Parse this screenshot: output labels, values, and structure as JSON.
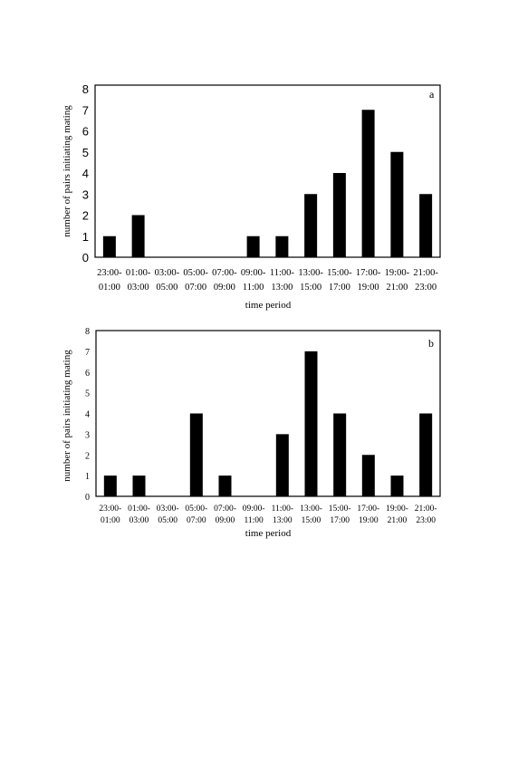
{
  "chart_data": [
    {
      "type": "bar",
      "panel_label": "a",
      "categories": [
        [
          "23:00-",
          "01:00"
        ],
        [
          "01:00-",
          "03:00"
        ],
        [
          "03:00-",
          "05:00"
        ],
        [
          "05:00-",
          "07:00"
        ],
        [
          "07:00-",
          "09:00"
        ],
        [
          "09:00-",
          "11:00"
        ],
        [
          "11:00-",
          "13:00"
        ],
        [
          "13:00-",
          "15:00"
        ],
        [
          "15:00-",
          "17:00"
        ],
        [
          "17:00-",
          "19:00"
        ],
        [
          "19:00-",
          "21:00"
        ],
        [
          "21:00-",
          "23:00"
        ]
      ],
      "values": [
        1,
        2,
        0,
        0,
        0,
        1,
        1,
        3,
        4,
        7,
        5,
        3
      ],
      "xlabel": "time period",
      "ylabel": "number of pairs initiating mating",
      "ylim": [
        0,
        8
      ],
      "yticks": [
        0,
        1,
        2,
        3,
        4,
        5,
        6,
        7,
        8
      ],
      "grid": false,
      "bar_color": "#000000"
    },
    {
      "type": "bar",
      "panel_label": "b",
      "categories": [
        [
          "23:00-",
          "01:00"
        ],
        [
          "01:00-",
          "03:00"
        ],
        [
          "03:00-",
          "05:00"
        ],
        [
          "05:00-",
          "07:00"
        ],
        [
          "07:00-",
          "09:00"
        ],
        [
          "09:00-",
          "11:00"
        ],
        [
          "11:00-",
          "13:00"
        ],
        [
          "13:00-",
          "15:00"
        ],
        [
          "15:00-",
          "17:00"
        ],
        [
          "17:00-",
          "19:00"
        ],
        [
          "19:00-",
          "21:00"
        ],
        [
          "21:00-",
          "23:00"
        ]
      ],
      "values": [
        1,
        1,
        0,
        4,
        1,
        0,
        3,
        7,
        4,
        2,
        1,
        4
      ],
      "xlabel": "time period",
      "ylabel": "number of pairs initiating mating",
      "ylim": [
        0,
        8
      ],
      "yticks": [
        0,
        1,
        2,
        3,
        4,
        5,
        6,
        7,
        8
      ],
      "grid": false,
      "bar_color": "#000000"
    }
  ]
}
